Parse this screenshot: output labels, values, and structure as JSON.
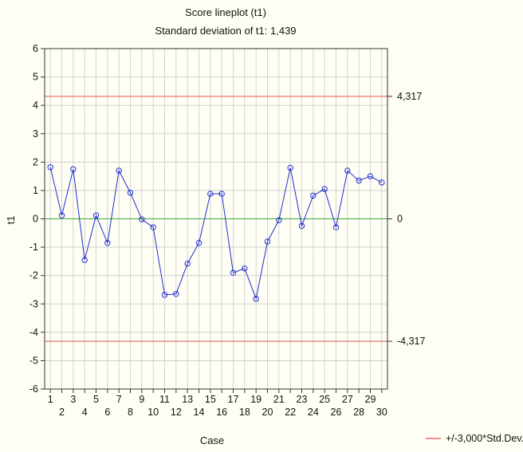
{
  "chart_data": {
    "type": "line",
    "title": "Score lineplot (t1)",
    "subtitle": "Standard deviation of t1: 1,439",
    "xlabel": "Case",
    "ylabel": "t1",
    "ylim": [
      -6,
      6
    ],
    "yticks": [
      "6",
      "5",
      "4",
      "3",
      "2",
      "1",
      "0",
      "-1",
      "-2",
      "-3",
      "-4",
      "-5",
      "-6"
    ],
    "xticks_upper": [
      "1",
      "3",
      "5",
      "7",
      "9",
      "11",
      "13",
      "15",
      "17",
      "19",
      "21",
      "23",
      "25",
      "27",
      "29"
    ],
    "xticks_lower": [
      "2",
      "4",
      "6",
      "8",
      "10",
      "12",
      "14",
      "16",
      "18",
      "20",
      "22",
      "24",
      "26",
      "28",
      "30"
    ],
    "x": [
      1,
      2,
      3,
      4,
      5,
      6,
      7,
      8,
      9,
      10,
      11,
      12,
      13,
      14,
      15,
      16,
      17,
      18,
      19,
      20,
      21,
      22,
      23,
      24,
      25,
      26,
      27,
      28,
      29,
      30
    ],
    "series": [
      {
        "values": [
          1.82,
          0.12,
          1.75,
          -1.45,
          0.12,
          -0.85,
          1.7,
          0.92,
          -0.02,
          -0.3,
          -2.68,
          -2.65,
          -1.58,
          -0.85,
          0.88,
          0.88,
          -1.9,
          -1.75,
          -2.82,
          -0.8,
          -0.05,
          1.8,
          -0.25,
          0.82,
          1.05,
          -0.3,
          1.7,
          1.35,
          1.5,
          1.28
        ],
        "color": "#1f2fd0"
      }
    ],
    "reference_lines": [
      {
        "value": 4.317,
        "label": "4,317",
        "color": "#e05050"
      },
      {
        "value": 0,
        "label": "0",
        "color": "#3aa83a"
      },
      {
        "value": -4.317,
        "label": "-4,317",
        "color": "#e05050"
      }
    ],
    "legend": {
      "label": "+/-3,000*Std.Dev.",
      "color": "#e05050",
      "position": "bottom-right"
    },
    "grid": true
  }
}
